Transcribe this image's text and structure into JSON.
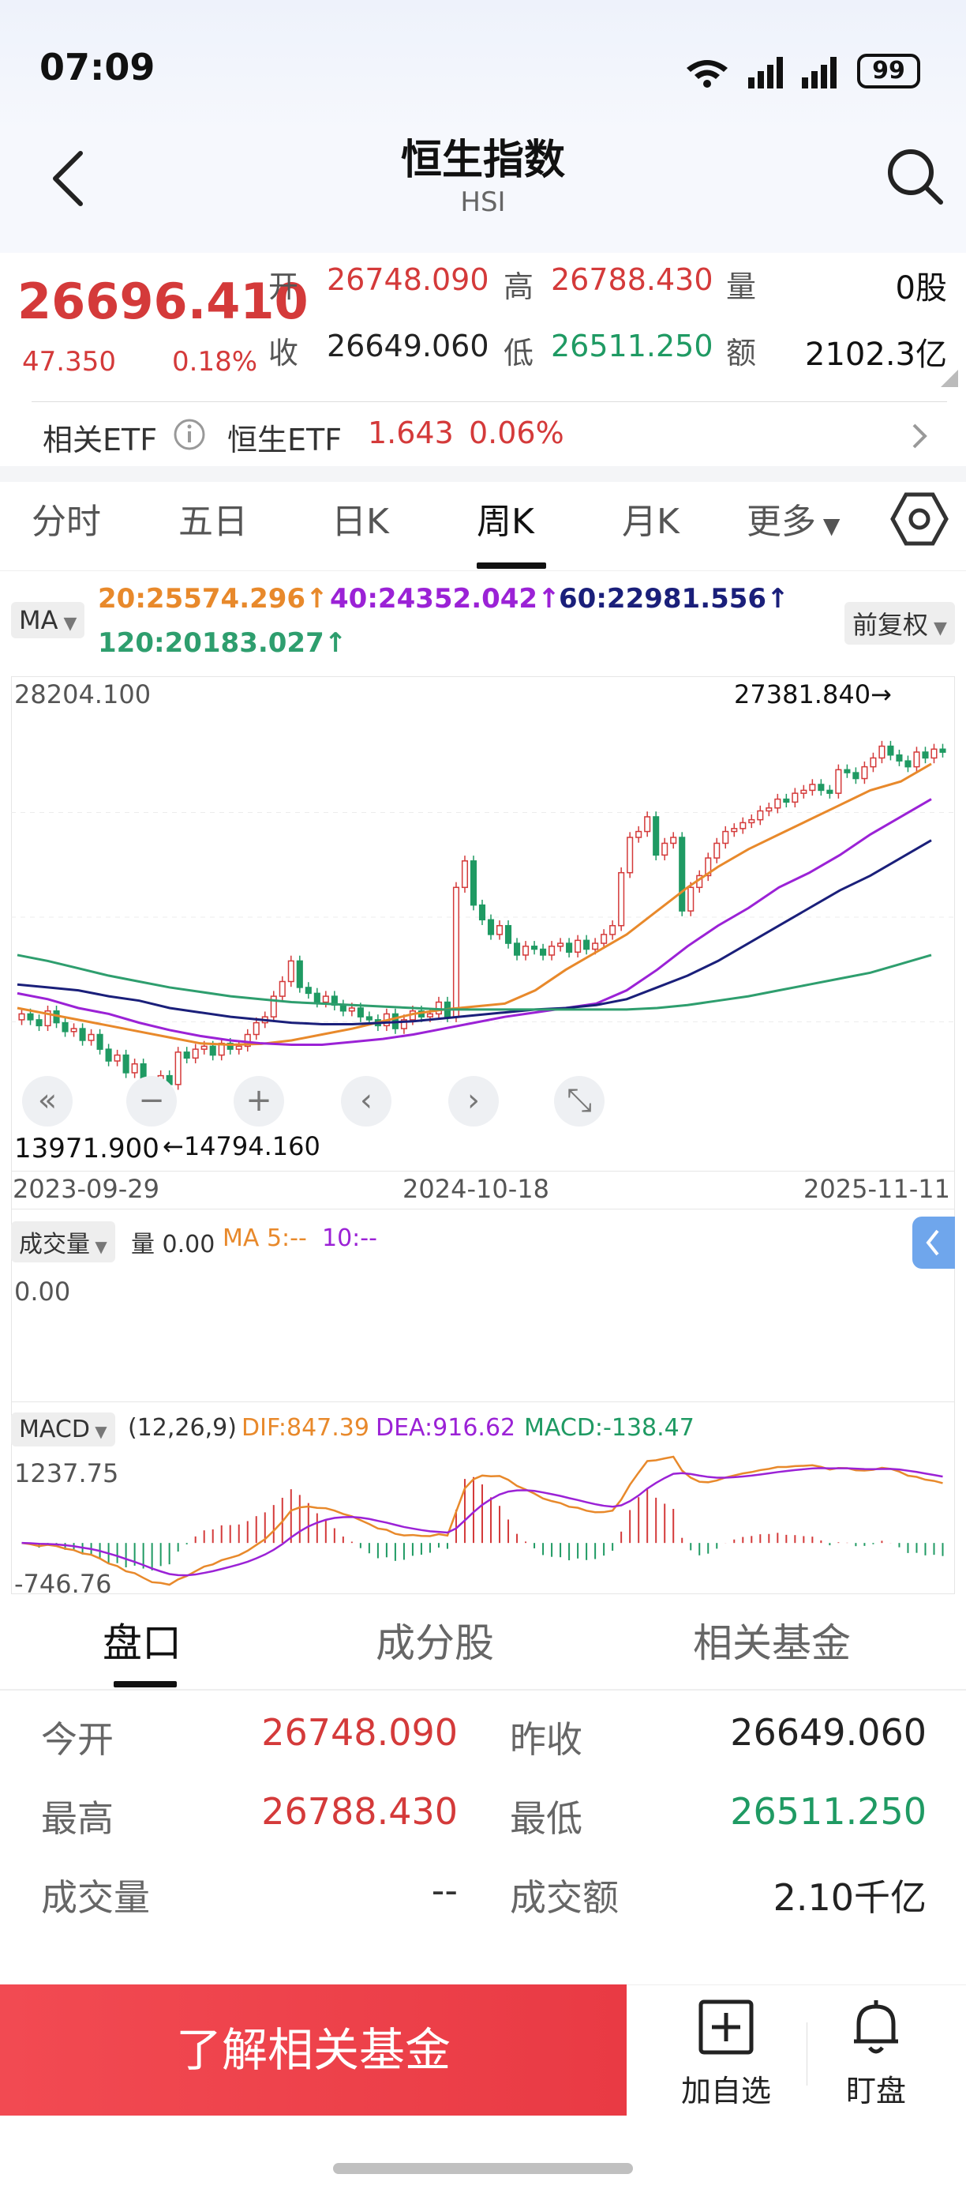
{
  "status_bar": {
    "time": "07:09",
    "battery": "99"
  },
  "header": {
    "title": "恒生指数",
    "subtitle": "HSI"
  },
  "quote": {
    "price": "26696.410",
    "change": "47.350",
    "change_pct": "0.18%",
    "open_label": "开",
    "open": "26748.090",
    "high_label": "高",
    "high": "26788.430",
    "volume_label": "量",
    "volume": "0股",
    "close_label": "收",
    "prev_close": "26649.060",
    "low_label": "低",
    "low": "26511.250",
    "amount_label": "额",
    "amount": "2102.3亿"
  },
  "etf": {
    "label": "相关ETF",
    "name": "恒生ETF",
    "price": "1.643",
    "pct": "0.06%"
  },
  "tabs": [
    "分时",
    "五日",
    "日K",
    "周K",
    "月K",
    "更多"
  ],
  "active_tab": "周K",
  "ma_legend": {
    "selector": "MA",
    "ma20": "20:25574.296↑",
    "ma40": "40:24352.042↑",
    "ma60": "60:22981.556↑",
    "ma120": "120:20183.027↑",
    "adjust": "前复权"
  },
  "colors": {
    "up": "#d43a3a",
    "down": "#1f9a63",
    "ma20": "#e8892b",
    "ma40": "#9b22d6",
    "ma60": "#1a1f7a",
    "ma120": "#2e9e6e"
  },
  "chart_data": {
    "type": "candlestick",
    "y_top_label": "28204.100",
    "y_bottom_label": "13971.900",
    "ylim": [
      13971.9,
      28204.1
    ],
    "max_annotation": "27381.840→",
    "min_annotation": "←14794.160",
    "x_labels": [
      "2023-09-29",
      "2024-10-18",
      "2025-11-11"
    ],
    "closes": [
      17800,
      17600,
      17400,
      17900,
      17500,
      17200,
      17300,
      16900,
      17100,
      16600,
      16200,
      16400,
      15800,
      16100,
      15500,
      15300,
      15700,
      15400,
      16500,
      16300,
      16600,
      16700,
      16400,
      16800,
      16600,
      16700,
      17100,
      17500,
      17700,
      18400,
      18900,
      19600,
      18700,
      18500,
      18200,
      18400,
      18100,
      17900,
      18000,
      17700,
      17600,
      17400,
      17800,
      17300,
      17600,
      17900,
      17700,
      17800,
      18200,
      17700,
      22100,
      23000,
      21500,
      21000,
      20500,
      20800,
      20200,
      19800,
      20100,
      20000,
      19800,
      20100,
      20200,
      19900,
      20300,
      20000,
      20200,
      20500,
      20800,
      22600,
      23800,
      24000,
      24500,
      23200,
      23600,
      23800,
      21300,
      22100,
      22500,
      23100,
      23600,
      24000,
      24100,
      24300,
      24400,
      24700,
      24800,
      25100,
      25000,
      25300,
      25400,
      25600,
      25400,
      25300,
      26100,
      26000,
      25800,
      26200,
      26500,
      26900,
      26600,
      26400,
      26200,
      26700,
      26500,
      26800,
      26696
    ],
    "ma_series": {
      "ma20": [
        18000,
        17800,
        17600,
        17400,
        17200,
        17000,
        16800,
        16750,
        16780,
        16900,
        17100,
        17300,
        17550,
        17800,
        17950,
        18050,
        18150,
        18600,
        19300,
        19900,
        20500,
        21300,
        22100,
        22800,
        23400,
        23900,
        24400,
        24900,
        25400,
        25700,
        26300
      ],
      "ma40": [
        18500,
        18300,
        18000,
        17800,
        17500,
        17250,
        17050,
        16900,
        16800,
        16750,
        16750,
        16850,
        16950,
        17100,
        17300,
        17500,
        17700,
        17850,
        18000,
        18150,
        18600,
        19300,
        20100,
        20800,
        21400,
        22100,
        22600,
        23200,
        23900,
        24500,
        25100
      ],
      "ma60": [
        18800,
        18700,
        18600,
        18400,
        18250,
        18000,
        17850,
        17700,
        17600,
        17500,
        17450,
        17450,
        17500,
        17550,
        17650,
        17750,
        17850,
        17950,
        18000,
        18100,
        18300,
        18700,
        19100,
        19600,
        20200,
        20800,
        21400,
        22000,
        22500,
        23100,
        23700
      ],
      "ma120": [
        19800,
        19600,
        19350,
        19100,
        18900,
        18700,
        18550,
        18400,
        18300,
        18200,
        18150,
        18100,
        18050,
        18000,
        17950,
        17950,
        17950,
        17950,
        17950,
        17950,
        17950,
        18000,
        18100,
        18250,
        18400,
        18600,
        18800,
        19000,
        19200,
        19500,
        19800
      ]
    }
  },
  "chart_controls": [
    "«",
    "−",
    "+",
    "‹",
    "›",
    "⤡"
  ],
  "volume_panel": {
    "selector": "成交量",
    "vol_text": "量 0.00",
    "ma5": "MA 5:--",
    "ma10": "10:--",
    "axis": "0.00"
  },
  "macd_panel": {
    "selector": "MACD",
    "params": "(12,26,9)",
    "dif": "DIF:847.39",
    "dea": "DEA:916.62",
    "macd": "MACD:-138.47",
    "y_top": "1237.75",
    "y_bottom": "-746.76"
  },
  "lower_tabs": [
    "盘口",
    "成分股",
    "相关基金"
  ],
  "pankou": {
    "open_label": "今开",
    "open": "26748.090",
    "prev_label": "昨收",
    "prev": "26649.060",
    "high_label": "最高",
    "high": "26788.430",
    "low_label": "最低",
    "low": "26511.250",
    "vol_label": "成交量",
    "vol": "--",
    "amt_label": "成交额",
    "amt": "2.10千亿"
  },
  "bottom_bar": {
    "fund_button": "了解相关基金",
    "watch": "加自选",
    "alert": "盯盘"
  }
}
